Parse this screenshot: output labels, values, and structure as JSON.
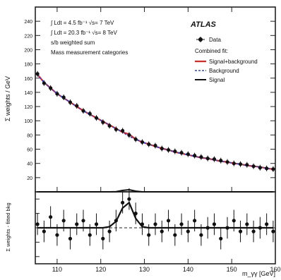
{
  "chart_data": [
    {
      "type": "scatter",
      "panel": "main",
      "ylabel": "Σ weights / GeV",
      "xlim": [
        105,
        160
      ],
      "ylim": [
        0,
        260
      ],
      "xticks": [
        110,
        120,
        130,
        140,
        150,
        160
      ],
      "yticks": [
        20,
        40,
        60,
        80,
        100,
        120,
        140,
        160,
        180,
        200,
        220,
        240
      ],
      "grid": false,
      "legend_position": "top-right",
      "experiment_label": "ATLAS",
      "annotations": [
        "∫ Ldt = 4.5 fb⁻¹ √s= 7 TeV",
        "∫ Ldt = 20.3 fb⁻¹ √s= 8 TeV",
        "s/b weighted sum",
        "Mass measurement categories"
      ],
      "legend": {
        "data": "Data",
        "combined_header": "Combined fit:",
        "signal_background": "Signal+background",
        "background": "Background",
        "signal": "Signal"
      },
      "x": [
        105.5,
        107,
        108.5,
        110,
        111.5,
        113,
        114.5,
        116,
        117.5,
        119,
        120.5,
        122,
        123.5,
        125,
        126.5,
        128,
        129.5,
        131,
        132.5,
        134,
        135.5,
        137,
        138.5,
        140,
        141.5,
        143,
        144.5,
        146,
        147.5,
        149,
        150.5,
        152,
        153.5,
        155,
        156.5,
        158,
        159.5
      ],
      "series": [
        {
          "role": "data",
          "y": [
            166,
            153,
            146,
            138,
            133,
            126,
            121,
            114,
            110,
            104,
            98,
            93,
            88,
            86,
            80,
            74,
            70,
            67,
            65,
            61,
            59,
            57,
            55,
            53,
            51,
            49,
            47,
            46,
            44,
            42,
            40,
            39,
            38,
            36,
            34,
            33,
            32
          ],
          "yerr": 4
        },
        {
          "role": "signal_background",
          "color": "#e8231e",
          "y": [
            165,
            154,
            146,
            138,
            132,
            126,
            120,
            114,
            109,
            104,
            99,
            94,
            89,
            84,
            81,
            74,
            70,
            67,
            64,
            61,
            59,
            56,
            54,
            52,
            50,
            48,
            47,
            45,
            43,
            42,
            40,
            39,
            37,
            36,
            35,
            33,
            32
          ]
        },
        {
          "role": "background",
          "color": "#2840d8",
          "y": [
            165,
            154,
            146,
            138,
            132,
            126,
            120,
            114,
            109,
            104,
            99,
            94,
            89,
            84,
            78,
            74,
            70,
            67,
            64,
            61,
            59,
            56,
            54,
            52,
            50,
            48,
            47,
            45,
            43,
            42,
            40,
            39,
            37,
            36,
            35,
            33,
            32
          ]
        },
        {
          "role": "signal",
          "color": "#111111",
          "y": [
            0,
            0,
            0,
            0,
            0,
            0,
            0,
            0,
            0,
            0,
            0,
            0,
            0.3,
            2,
            3,
            1,
            0,
            0,
            0,
            0,
            0,
            0,
            0,
            0,
            0,
            0,
            0,
            0,
            0,
            0,
            0,
            0,
            0,
            0,
            0,
            0,
            0
          ]
        }
      ]
    },
    {
      "type": "scatter",
      "panel": "residual",
      "xlabel": "m_γγ [GeV]",
      "ylabel": "Σ weights - fitted bkg",
      "xlim": [
        105,
        160
      ],
      "ylim": [
        -10,
        10
      ],
      "xticks": [
        110,
        120,
        130,
        140,
        150,
        160
      ],
      "grid": false,
      "x": [
        105.5,
        107,
        108.5,
        110,
        111.5,
        113,
        114.5,
        116,
        117.5,
        119,
        120.5,
        122,
        123.5,
        125,
        126.5,
        128,
        129.5,
        131,
        132.5,
        134,
        135.5,
        137,
        138.5,
        140,
        141.5,
        143,
        144.5,
        146,
        147.5,
        149,
        150.5,
        152,
        153.5,
        155,
        156.5,
        158,
        159.5
      ],
      "series": [
        {
          "role": "residual_data",
          "y": [
            1,
            -1,
            3,
            -2,
            2,
            -3,
            1,
            2,
            -2,
            1,
            -3,
            -1,
            2,
            7,
            8,
            4,
            1,
            -2,
            1,
            -1,
            2,
            -2,
            1,
            -1,
            2,
            -2,
            0,
            1,
            -3,
            0,
            2,
            -1,
            1,
            -1,
            0,
            1,
            -1
          ],
          "yerr": 3
        },
        {
          "role": "signal",
          "color": "#111111",
          "y": [
            0,
            0,
            0,
            0,
            0,
            0,
            0,
            0,
            0,
            0,
            0,
            0.3,
            1.8,
            5.5,
            7,
            2.6,
            0.3,
            0,
            0,
            0,
            0,
            0,
            0,
            0,
            0,
            0,
            0,
            0,
            0,
            0,
            0,
            0,
            0,
            0,
            0,
            0,
            0
          ]
        }
      ]
    }
  ]
}
